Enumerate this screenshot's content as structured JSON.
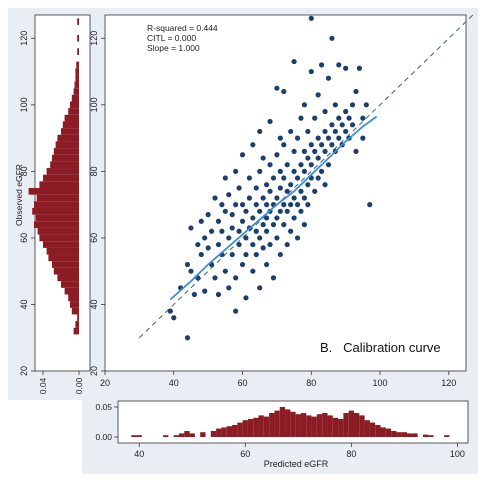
{
  "chart_data": {
    "type": "scatter",
    "panel_label": "B.   Calibration curve",
    "stats": [
      "R-squared = 0.444",
      "CITL = 0.000",
      "Slope = 1.000"
    ],
    "xlabel": "Predicted eGFR",
    "ylabel": "Observed eGFR",
    "xlim": [
      20,
      125
    ],
    "ylim": [
      20,
      127
    ],
    "x_ticks": [
      20,
      40,
      60,
      80,
      100,
      120
    ],
    "y_ticks": [
      20,
      40,
      60,
      80,
      100,
      120
    ],
    "colors": {
      "points": "#1c3f6b",
      "smooth": "#3a8fd6",
      "histogram": "#8b1c24",
      "panel_bg": "#e8eef3"
    },
    "reference_line": {
      "name": "",
      "points": [
        [
          30,
          30
        ],
        [
          127,
          127
        ]
      ]
    },
    "smooth_line": {
      "name": "",
      "x": [
        39,
        45,
        50,
        55,
        60,
        65,
        70,
        75,
        80,
        85,
        90,
        95,
        99
      ],
      "y": [
        41.5,
        47,
        52,
        56.5,
        61,
        65.5,
        70,
        74,
        79,
        84,
        89,
        93.5,
        96.5
      ]
    },
    "points": [
      [
        39,
        38
      ],
      [
        40,
        36
      ],
      [
        42,
        45
      ],
      [
        44,
        52
      ],
      [
        44,
        30
      ],
      [
        45,
        63
      ],
      [
        45,
        50
      ],
      [
        46,
        43
      ],
      [
        47,
        58
      ],
      [
        47,
        48
      ],
      [
        48,
        55
      ],
      [
        48,
        65
      ],
      [
        49,
        60
      ],
      [
        49,
        44
      ],
      [
        50,
        67
      ],
      [
        50,
        57
      ],
      [
        51,
        52
      ],
      [
        51,
        62
      ],
      [
        52,
        72
      ],
      [
        52,
        48
      ],
      [
        53,
        58
      ],
      [
        53,
        65
      ],
      [
        53,
        43
      ],
      [
        54,
        70
      ],
      [
        54,
        55
      ],
      [
        54,
        62
      ],
      [
        55,
        50
      ],
      [
        55,
        68
      ],
      [
        55,
        78
      ],
      [
        56,
        60
      ],
      [
        56,
        45
      ],
      [
        56,
        73
      ],
      [
        57,
        63
      ],
      [
        57,
        55
      ],
      [
        57,
        67
      ],
      [
        58,
        48
      ],
      [
        58,
        70
      ],
      [
        58,
        80
      ],
      [
        58,
        38
      ],
      [
        59,
        62
      ],
      [
        59,
        58
      ],
      [
        59,
        75
      ],
      [
        60,
        65
      ],
      [
        60,
        52
      ],
      [
        60,
        70
      ],
      [
        60,
        85
      ],
      [
        61,
        60
      ],
      [
        61,
        68
      ],
      [
        61,
        55
      ],
      [
        61,
        42
      ],
      [
        62,
        72
      ],
      [
        62,
        63
      ],
      [
        62,
        78
      ],
      [
        63,
        58
      ],
      [
        63,
        66
      ],
      [
        63,
        50
      ],
      [
        63,
        88
      ],
      [
        64,
        70
      ],
      [
        64,
        62
      ],
      [
        64,
        75
      ],
      [
        64,
        55
      ],
      [
        65,
        68
      ],
      [
        65,
        60
      ],
      [
        65,
        80
      ],
      [
        65,
        45
      ],
      [
        65,
        92
      ],
      [
        66,
        72
      ],
      [
        66,
        64
      ],
      [
        66,
        57
      ],
      [
        66,
        84
      ],
      [
        67,
        70
      ],
      [
        67,
        62
      ],
      [
        67,
        76
      ],
      [
        67,
        52
      ],
      [
        67,
        66
      ],
      [
        68,
        74
      ],
      [
        68,
        68
      ],
      [
        68,
        82
      ],
      [
        68,
        58
      ],
      [
        68,
        95
      ],
      [
        69,
        70
      ],
      [
        69,
        64
      ],
      [
        69,
        78
      ],
      [
        69,
        48
      ],
      [
        70,
        72
      ],
      [
        70,
        66
      ],
      [
        70,
        85
      ],
      [
        70,
        60
      ],
      [
        70,
        105
      ],
      [
        71,
        75
      ],
      [
        71,
        68
      ],
      [
        71,
        80
      ],
      [
        71,
        55
      ],
      [
        71,
        90
      ],
      [
        72,
        70
      ],
      [
        72,
        78
      ],
      [
        72,
        64
      ],
      [
        72,
        88
      ],
      [
        72,
        104
      ],
      [
        73,
        74
      ],
      [
        73,
        68
      ],
      [
        73,
        82
      ],
      [
        73,
        58
      ],
      [
        74,
        76
      ],
      [
        74,
        70
      ],
      [
        74,
        92
      ],
      [
        74,
        62
      ],
      [
        75,
        80
      ],
      [
        75,
        72
      ],
      [
        75,
        86
      ],
      [
        75,
        66
      ],
      [
        75,
        113
      ],
      [
        76,
        78
      ],
      [
        76,
        70
      ],
      [
        76,
        90
      ],
      [
        76,
        60
      ],
      [
        77,
        82
      ],
      [
        77,
        74
      ],
      [
        77,
        96
      ],
      [
        77,
        68
      ],
      [
        78,
        80
      ],
      [
        78,
        86
      ],
      [
        78,
        72
      ],
      [
        78,
        100
      ],
      [
        78,
        64
      ],
      [
        79,
        84
      ],
      [
        79,
        76
      ],
      [
        79,
        92
      ],
      [
        79,
        70
      ],
      [
        80,
        82
      ],
      [
        80,
        78
      ],
      [
        80,
        110
      ],
      [
        80,
        126
      ],
      [
        80,
        88
      ],
      [
        81,
        86
      ],
      [
        81,
        74
      ],
      [
        81,
        96
      ],
      [
        82,
        84
      ],
      [
        82,
        90
      ],
      [
        82,
        78
      ],
      [
        82,
        103
      ],
      [
        83,
        88
      ],
      [
        83,
        80
      ],
      [
        83,
        112
      ],
      [
        84,
        86
      ],
      [
        84,
        92
      ],
      [
        84,
        76
      ],
      [
        84,
        98
      ],
      [
        85,
        90
      ],
      [
        85,
        82
      ],
      [
        85,
        108
      ],
      [
        86,
        88
      ],
      [
        86,
        94
      ],
      [
        86,
        120
      ],
      [
        87,
        92
      ],
      [
        87,
        86
      ],
      [
        87,
        100
      ],
      [
        88,
        90
      ],
      [
        88,
        96
      ],
      [
        88,
        112
      ],
      [
        89,
        94
      ],
      [
        89,
        88
      ],
      [
        90,
        92
      ],
      [
        90,
        98
      ],
      [
        90,
        111
      ],
      [
        91,
        96
      ],
      [
        91,
        90
      ],
      [
        92,
        94
      ],
      [
        92,
        100
      ],
      [
        93,
        86
      ],
      [
        93,
        104
      ],
      [
        94,
        111
      ],
      [
        95,
        96
      ],
      [
        95,
        90
      ],
      [
        96,
        100
      ],
      [
        97,
        70
      ]
    ],
    "y_histogram": {
      "name": "",
      "axis_label": "",
      "tick_values": [
        0.04,
        0.0
      ],
      "tick_labels": [
        "0.04",
        "0.00"
      ],
      "bins": [
        [
          32,
          0.006
        ],
        [
          34,
          0.004
        ],
        [
          36,
          0.002
        ],
        [
          38,
          0.008
        ],
        [
          40,
          0.01
        ],
        [
          42,
          0.012
        ],
        [
          44,
          0.016
        ],
        [
          46,
          0.02
        ],
        [
          48,
          0.024
        ],
        [
          50,
          0.028
        ],
        [
          52,
          0.03
        ],
        [
          54,
          0.034
        ],
        [
          56,
          0.036
        ],
        [
          58,
          0.04
        ],
        [
          60,
          0.044
        ],
        [
          62,
          0.046
        ],
        [
          64,
          0.05
        ],
        [
          66,
          0.048
        ],
        [
          68,
          0.052
        ],
        [
          70,
          0.05
        ],
        [
          72,
          0.047
        ],
        [
          74,
          0.056
        ],
        [
          76,
          0.044
        ],
        [
          78,
          0.04
        ],
        [
          80,
          0.036
        ],
        [
          82,
          0.032
        ],
        [
          84,
          0.03
        ],
        [
          86,
          0.028
        ],
        [
          88,
          0.026
        ],
        [
          90,
          0.024
        ],
        [
          92,
          0.02
        ],
        [
          94,
          0.018
        ],
        [
          96,
          0.016
        ],
        [
          98,
          0.012
        ],
        [
          100,
          0.01
        ],
        [
          102,
          0.008
        ],
        [
          104,
          0.006
        ],
        [
          106,
          0.005
        ],
        [
          108,
          0.004
        ],
        [
          110,
          0.004
        ],
        [
          112,
          0.003
        ],
        [
          116,
          0.002
        ],
        [
          120,
          0.002
        ],
        [
          125,
          0.002
        ]
      ]
    },
    "x_histogram": {
      "name": "",
      "axis_label": "Predicted eGFR",
      "y_ticks": [
        0.0,
        0.05
      ],
      "y_tick_labels": [
        "0.00",
        "0.05"
      ],
      "x_ticks": [
        40,
        60,
        80,
        100
      ],
      "bins": [
        [
          39,
          0.003
        ],
        [
          40,
          0.003
        ],
        [
          45,
          0.003
        ],
        [
          47,
          0.003
        ],
        [
          48,
          0.006
        ],
        [
          49,
          0.01
        ],
        [
          50,
          0.006
        ],
        [
          52,
          0.008
        ],
        [
          54,
          0.01
        ],
        [
          55,
          0.014
        ],
        [
          56,
          0.016
        ],
        [
          57,
          0.018
        ],
        [
          58,
          0.02
        ],
        [
          59,
          0.024
        ],
        [
          60,
          0.028
        ],
        [
          61,
          0.03
        ],
        [
          62,
          0.032
        ],
        [
          63,
          0.036
        ],
        [
          64,
          0.034
        ],
        [
          65,
          0.04
        ],
        [
          66,
          0.044
        ],
        [
          67,
          0.05
        ],
        [
          68,
          0.046
        ],
        [
          69,
          0.042
        ],
        [
          70,
          0.038
        ],
        [
          71,
          0.04
        ],
        [
          72,
          0.036
        ],
        [
          73,
          0.034
        ],
        [
          74,
          0.038
        ],
        [
          75,
          0.04
        ],
        [
          76,
          0.036
        ],
        [
          77,
          0.032
        ],
        [
          78,
          0.03
        ],
        [
          79,
          0.04
        ],
        [
          80,
          0.044
        ],
        [
          81,
          0.04
        ],
        [
          82,
          0.036
        ],
        [
          83,
          0.028
        ],
        [
          84,
          0.024
        ],
        [
          85,
          0.02
        ],
        [
          86,
          0.016
        ],
        [
          87,
          0.014
        ],
        [
          88,
          0.01
        ],
        [
          89,
          0.008
        ],
        [
          90,
          0.008
        ],
        [
          91,
          0.006
        ],
        [
          92,
          0.006
        ],
        [
          94,
          0.004
        ],
        [
          95,
          0.003
        ],
        [
          98,
          0.003
        ]
      ]
    }
  }
}
